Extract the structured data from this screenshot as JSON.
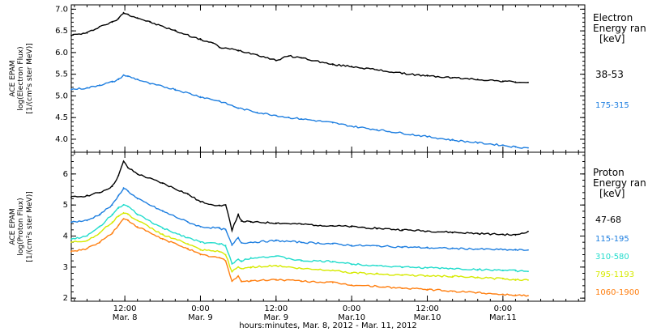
{
  "colors": {
    "black": "#000000",
    "blue": "#1f7fe0",
    "cyan": "#22dccc",
    "yellow": "#d6ea00",
    "orange": "#ff7f10"
  },
  "x_axis": {
    "ticks": [
      {
        "time": "12:00",
        "date": "Mar. 8",
        "hours": 12
      },
      {
        "time": "0:00",
        "date": "Mar. 9",
        "hours": 24
      },
      {
        "time": "12:00",
        "date": "Mar. 9",
        "hours": 36
      },
      {
        "time": "0:00",
        "date": "Mar.10",
        "hours": 48
      },
      {
        "time": "12:00",
        "date": "Mar.10",
        "hours": 60
      },
      {
        "time": "0:00",
        "date": "Mar.11",
        "hours": 72
      }
    ],
    "title": "hours:minutes, Mar.  8, 2012 - Mar. 11, 2012"
  },
  "chart_data": [
    {
      "type": "line",
      "ylabel": [
        "ACE EPAM",
        "log(Electron Flux)",
        "[1/(cm²s ster MeV)]"
      ],
      "ylim": [
        3.7,
        7.1
      ],
      "yticks": [
        "4.0",
        "4.5",
        "5.0",
        "5.5",
        "6.0",
        "6.5",
        "7.0"
      ],
      "xlim_hours": [
        3.5,
        85
      ],
      "legend_title": [
        "Electron",
        "Energy ran",
        "[keV]"
      ],
      "series": [
        {
          "name": "38-53",
          "color": "#000000",
          "x": [
            3.5,
            6,
            8,
            10,
            11,
            11.8,
            12.5,
            14,
            16,
            20,
            24,
            26,
            27,
            30,
            33,
            36,
            38,
            40,
            45,
            48,
            52,
            56,
            60,
            64,
            68,
            72,
            74,
            76
          ],
          "y": [
            6.4,
            6.45,
            6.6,
            6.7,
            6.78,
            6.92,
            6.88,
            6.8,
            6.7,
            6.5,
            6.3,
            6.22,
            6.12,
            6.05,
            5.95,
            5.82,
            5.92,
            5.88,
            5.72,
            5.68,
            5.6,
            5.52,
            5.46,
            5.42,
            5.38,
            5.34,
            5.32,
            5.31
          ]
        },
        {
          "name": "175-315",
          "color": "#1f7fe0",
          "x": [
            3.5,
            6,
            8,
            10,
            11,
            11.8,
            12.5,
            14,
            16,
            20,
            24,
            27,
            30,
            33,
            36,
            38,
            40,
            45,
            48,
            52,
            56,
            60,
            64,
            68,
            72,
            74,
            76
          ],
          "y": [
            5.15,
            5.18,
            5.25,
            5.32,
            5.38,
            5.48,
            5.45,
            5.38,
            5.28,
            5.15,
            4.98,
            4.88,
            4.72,
            4.62,
            4.55,
            4.5,
            4.47,
            4.38,
            4.3,
            4.22,
            4.14,
            4.06,
            3.98,
            3.92,
            3.86,
            3.82,
            3.8
          ]
        }
      ]
    },
    {
      "type": "line",
      "ylabel": [
        "ACE EPAM",
        "log(Proton Flux)",
        "[1/(cm²s ster MeV)]"
      ],
      "ylim": [
        1.9,
        6.7
      ],
      "yticks": [
        "2",
        "3",
        "4",
        "5",
        "6"
      ],
      "xlim_hours": [
        3.5,
        85
      ],
      "legend_title": [
        "Proton",
        "Energy ran",
        "[keV]"
      ],
      "series": [
        {
          "name": "47-68",
          "color": "#000000",
          "x": [
            3.5,
            6,
            8,
            10,
            11,
            11.8,
            12.5,
            14,
            18,
            22,
            24,
            27,
            28,
            29,
            30,
            30.5,
            32,
            36,
            40,
            45,
            48,
            52,
            56,
            60,
            64,
            68,
            72,
            74,
            76
          ],
          "y": [
            5.25,
            5.3,
            5.4,
            5.6,
            5.95,
            6.4,
            6.2,
            6.0,
            5.7,
            5.35,
            5.1,
            4.98,
            5.0,
            4.2,
            4.7,
            4.48,
            4.45,
            4.42,
            4.38,
            4.33,
            4.3,
            4.25,
            4.2,
            4.16,
            4.12,
            4.08,
            4.05,
            4.03,
            4.15
          ]
        },
        {
          "name": "115-195",
          "color": "#1f7fe0",
          "x": [
            3.5,
            6,
            8,
            10,
            11,
            11.8,
            12.5,
            14,
            18,
            22,
            24,
            27,
            28,
            29,
            30,
            30.5,
            32,
            36,
            40,
            45,
            48,
            52,
            56,
            60,
            64,
            68,
            72,
            74,
            76
          ],
          "y": [
            4.45,
            4.5,
            4.7,
            5.0,
            5.3,
            5.55,
            5.45,
            5.2,
            4.8,
            4.45,
            4.3,
            4.25,
            4.2,
            3.7,
            3.95,
            3.78,
            3.8,
            3.85,
            3.8,
            3.75,
            3.7,
            3.68,
            3.65,
            3.62,
            3.6,
            3.58,
            3.56,
            3.55,
            3.55
          ]
        },
        {
          "name": "310-580",
          "color": "#22dccc",
          "x": [
            3.5,
            6,
            8,
            10,
            11,
            11.8,
            12.5,
            14,
            18,
            22,
            24,
            27,
            28,
            29,
            30,
            30.5,
            32,
            36,
            40,
            45,
            48,
            52,
            56,
            60,
            64,
            68,
            72,
            74,
            76
          ],
          "y": [
            3.9,
            4.0,
            4.3,
            4.7,
            4.9,
            5.0,
            4.95,
            4.7,
            4.25,
            3.95,
            3.8,
            3.75,
            3.7,
            3.1,
            3.25,
            3.2,
            3.3,
            3.35,
            3.2,
            3.18,
            3.1,
            3.05,
            3.0,
            2.98,
            2.95,
            2.92,
            2.9,
            2.88,
            2.86
          ]
        },
        {
          "name": "795-1193",
          "color": "#d6ea00",
          "x": [
            3.5,
            6,
            8,
            10,
            11,
            11.8,
            12.5,
            14,
            18,
            22,
            24,
            27,
            28,
            29,
            30,
            30.5,
            32,
            36,
            40,
            45,
            48,
            52,
            56,
            60,
            64,
            68,
            72,
            74,
            76
          ],
          "y": [
            3.8,
            3.85,
            4.1,
            4.45,
            4.65,
            4.75,
            4.7,
            4.5,
            4.05,
            3.75,
            3.55,
            3.5,
            3.4,
            2.85,
            3.0,
            2.95,
            3.0,
            3.05,
            2.95,
            2.9,
            2.82,
            2.78,
            2.75,
            2.72,
            2.7,
            2.66,
            2.62,
            2.6,
            2.58
          ]
        },
        {
          "name": "1060-1900",
          "color": "#ff7f10",
          "x": [
            3.5,
            6,
            8,
            10,
            11,
            11.8,
            12.5,
            14,
            18,
            22,
            24,
            27,
            28,
            29,
            30,
            30.5,
            32,
            36,
            40,
            45,
            48,
            52,
            56,
            60,
            64,
            68,
            72,
            74,
            76
          ],
          "y": [
            3.5,
            3.6,
            3.8,
            4.1,
            4.35,
            4.55,
            4.5,
            4.3,
            3.9,
            3.6,
            3.4,
            3.3,
            3.2,
            2.55,
            2.7,
            2.55,
            2.55,
            2.6,
            2.55,
            2.5,
            2.42,
            2.38,
            2.32,
            2.28,
            2.22,
            2.18,
            2.12,
            2.1,
            2.08
          ]
        }
      ]
    }
  ]
}
